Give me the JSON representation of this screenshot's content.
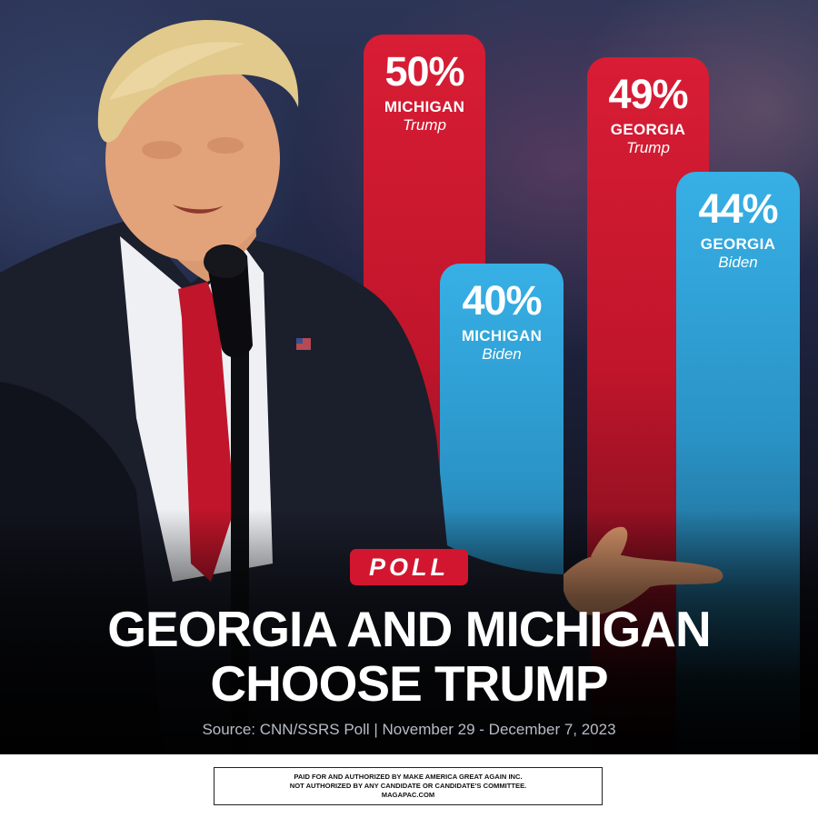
{
  "chart_data": {
    "type": "bar",
    "categories": [
      "MICHIGAN Trump",
      "MICHIGAN Biden",
      "GEORGIA Trump",
      "GEORGIA Biden"
    ],
    "bars": [
      {
        "state": "MICHIGAN",
        "candidate": "Trump",
        "value": 50,
        "label": "50%",
        "color": "#d21a31"
      },
      {
        "state": "MICHIGAN",
        "candidate": "Biden",
        "value": 40,
        "label": "40%",
        "color": "#2fa3d8"
      },
      {
        "state": "GEORGIA",
        "candidate": "Trump",
        "value": 49,
        "label": "49%",
        "color": "#d21a31"
      },
      {
        "state": "GEORGIA",
        "candidate": "Biden",
        "value": 44,
        "label": "44%",
        "color": "#2fa3d8"
      }
    ],
    "title": "GEORGIA AND MICHIGAN CHOOSE TRUMP"
  },
  "badge": "POLL",
  "headline": {
    "line1": "GEORGIA AND MICHIGAN",
    "line2": "CHOOSE TRUMP"
  },
  "source": "Source: CNN/SSRS Poll | November 29 - December 7, 2023",
  "disclaimer": {
    "line1": "PAID FOR AND AUTHORIZED BY MAKE AMERICA GREAT AGAIN INC.",
    "line2": "NOT AUTHORIZED BY ANY CANDIDATE OR CANDIDATE'S COMMITTEE.",
    "line3": "MAGAPAC.COM"
  },
  "colors": {
    "trump_red": "#d21a31",
    "biden_blue": "#2fa3d8",
    "badge_red": "#d3162f"
  }
}
